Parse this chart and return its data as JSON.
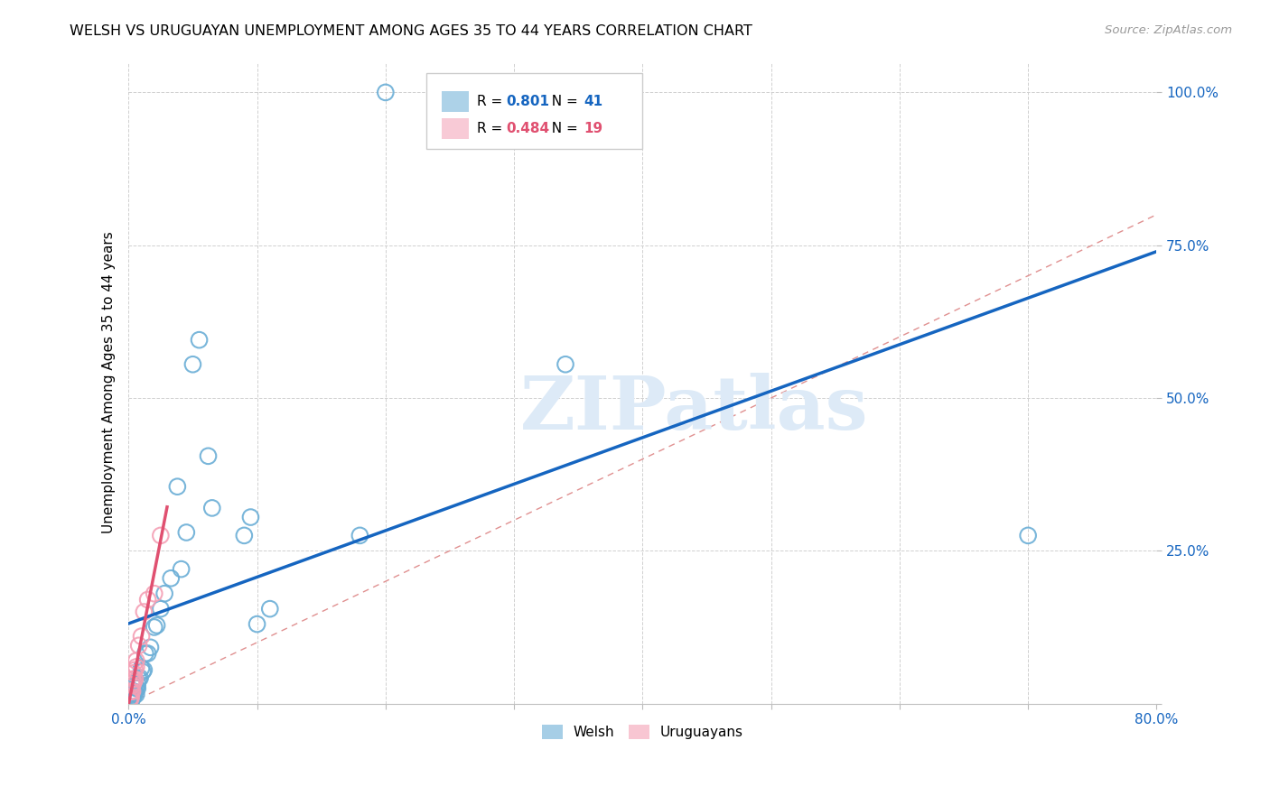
{
  "title": "WELSH VS URUGUAYAN UNEMPLOYMENT AMONG AGES 35 TO 44 YEARS CORRELATION CHART",
  "source": "Source: ZipAtlas.com",
  "ylabel": "Unemployment Among Ages 35 to 44 years",
  "xlim": [
    0.0,
    80.0
  ],
  "ylim": [
    0.0,
    105.0
  ],
  "ytick_positions": [
    0.0,
    25.0,
    50.0,
    75.0,
    100.0
  ],
  "ytick_labels": [
    "",
    "25.0%",
    "50.0%",
    "75.0%",
    "100.0%"
  ],
  "xtick_positions": [
    0.0,
    10.0,
    20.0,
    30.0,
    40.0,
    50.0,
    60.0,
    70.0,
    80.0
  ],
  "xtick_labels": [
    "0.0%",
    "",
    "",
    "",
    "",
    "",
    "",
    "",
    "80.0%"
  ],
  "welsh_R": 0.801,
  "welsh_N": 41,
  "uruguayan_R": 0.484,
  "uruguayan_N": 19,
  "welsh_color": "#6baed6",
  "uruguayan_color": "#f4a0b5",
  "welsh_line_color": "#1565c0",
  "uruguayan_line_color": "#e05070",
  "diag_line_color": "#e09090",
  "watermark": "ZIPatlas",
  "watermark_color": "#ddeaf7",
  "welsh_x": [
    0.2,
    0.2,
    0.3,
    0.3,
    0.3,
    0.4,
    0.4,
    0.5,
    0.5,
    0.6,
    0.6,
    0.7,
    0.7,
    0.8,
    0.9,
    1.0,
    1.1,
    1.2,
    1.3,
    1.5,
    1.7,
    2.0,
    2.2,
    2.5,
    2.8,
    3.3,
    3.8,
    4.1,
    4.5,
    5.0,
    5.5,
    6.2,
    6.5,
    9.0,
    9.5,
    10.0,
    11.0,
    18.0,
    20.0,
    34.0,
    70.0
  ],
  "welsh_y": [
    0.5,
    1.0,
    0.8,
    1.5,
    2.0,
    1.2,
    2.0,
    1.8,
    3.0,
    1.5,
    2.5,
    2.5,
    3.2,
    4.0,
    4.2,
    5.8,
    5.2,
    5.5,
    8.2,
    8.2,
    9.2,
    12.5,
    12.8,
    15.5,
    18.0,
    20.5,
    35.5,
    22.0,
    28.0,
    55.5,
    59.5,
    40.5,
    32.0,
    27.5,
    30.5,
    13.0,
    15.5,
    27.5,
    100.0,
    55.5,
    27.5
  ],
  "uruguayan_x": [
    0.1,
    0.1,
    0.2,
    0.2,
    0.3,
    0.3,
    0.3,
    0.4,
    0.4,
    0.5,
    0.5,
    0.6,
    0.6,
    0.8,
    1.0,
    1.2,
    1.5,
    2.0,
    2.5
  ],
  "uruguayan_y": [
    0.5,
    0.8,
    1.0,
    2.0,
    2.0,
    3.0,
    4.0,
    3.5,
    5.0,
    4.0,
    5.5,
    6.0,
    7.0,
    9.5,
    11.0,
    15.0,
    17.0,
    18.0,
    27.5
  ]
}
